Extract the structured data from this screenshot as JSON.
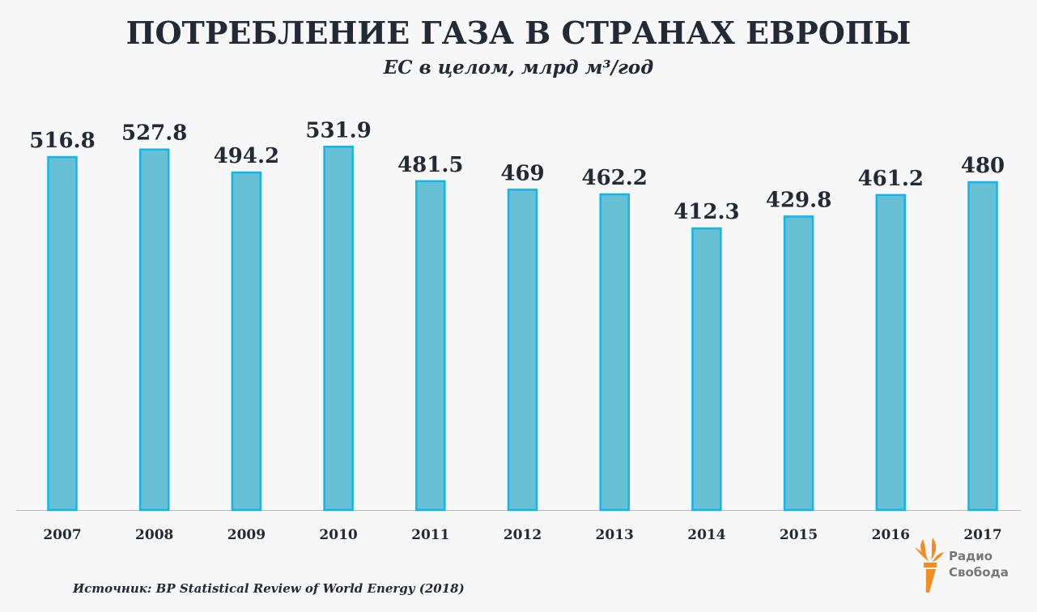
{
  "chart_data": {
    "type": "bar",
    "title": "ПОТРЕБЛЕНИЕ ГАЗА В СТРАНАХ ЕВРОПЫ",
    "subtitle": "ЕС в целом, млрд м³/год",
    "xlabel": "",
    "ylabel": "",
    "categories": [
      "2007",
      "2008",
      "2009",
      "2010",
      "2011",
      "2012",
      "2013",
      "2014",
      "2015",
      "2016",
      "2017"
    ],
    "values": [
      516.8,
      527.8,
      494.2,
      531.9,
      481.5,
      469,
      462.2,
      412.3,
      429.8,
      461.2,
      480
    ],
    "ylim": [
      0,
      560
    ],
    "grid": false,
    "colors": {
      "bar_fill": "#67c0d3",
      "bar_border": "#12b4ee",
      "text": "#222a35",
      "axis": "#bbbbbb"
    }
  },
  "source": "Источник: BP Statistical Review of World Energy (2018)",
  "logo": {
    "line1": "Радио",
    "line2": "Свобода",
    "color": "#f68b1f"
  }
}
